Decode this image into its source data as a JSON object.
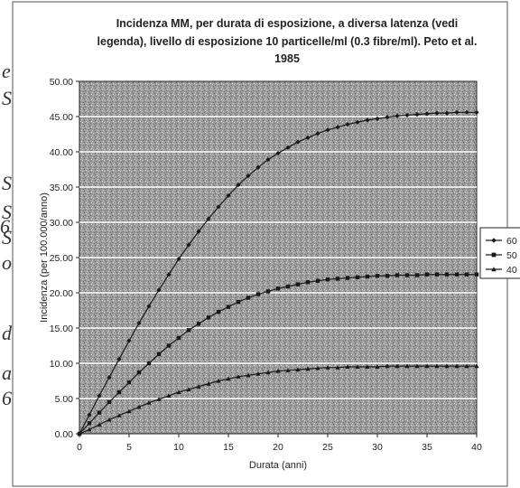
{
  "chart_data": {
    "type": "line",
    "title_lines": [
      "Incidenza MM, per durata di esposizione, a diversa latenza (vedi",
      "legenda), livello di esposizione 10 particelle/ml (0.3 fibre/ml). Peto et al.",
      "1985"
    ],
    "xlabel": "Durata (anni)",
    "ylabel": "Incidenza (per 100.000/anno)",
    "xlim": [
      0,
      40
    ],
    "ylim": [
      0,
      50
    ],
    "x_ticks": [
      0,
      5,
      10,
      15,
      20,
      25,
      30,
      35,
      40
    ],
    "y_ticks": [
      "0.00",
      "5.00",
      "10.00",
      "15.00",
      "20.00",
      "25.00",
      "30.00",
      "35.00",
      "40.00",
      "45.00",
      "50.00"
    ],
    "grid": "horizontal",
    "legend_position": "right (partially cropped)",
    "x": [
      0,
      1,
      2,
      3,
      4,
      5,
      6,
      7,
      8,
      9,
      10,
      11,
      12,
      13,
      14,
      15,
      16,
      17,
      18,
      19,
      20,
      21,
      22,
      23,
      24,
      25,
      26,
      27,
      28,
      29,
      30,
      31,
      32,
      33,
      34,
      35,
      36,
      37,
      38,
      39,
      40
    ],
    "series": [
      {
        "name": "60",
        "marker": "diamond",
        "values": [
          0.0,
          2.7,
          5.4,
          8.0,
          10.6,
          13.2,
          15.7,
          18.1,
          20.4,
          22.6,
          24.8,
          26.8,
          28.7,
          30.5,
          32.2,
          33.8,
          35.3,
          36.6,
          37.8,
          38.9,
          39.8,
          40.6,
          41.4,
          42.0,
          42.6,
          43.1,
          43.5,
          43.9,
          44.2,
          44.5,
          44.7,
          44.9,
          45.1,
          45.2,
          45.3,
          45.4,
          45.5,
          45.5,
          45.6,
          45.6,
          45.6
        ]
      },
      {
        "name": "50",
        "marker": "square",
        "values": [
          0.0,
          1.5,
          3.0,
          4.5,
          5.9,
          7.3,
          8.7,
          10.0,
          11.3,
          12.5,
          13.6,
          14.7,
          15.6,
          16.5,
          17.3,
          18.0,
          18.7,
          19.3,
          19.8,
          20.2,
          20.6,
          20.9,
          21.2,
          21.5,
          21.7,
          21.9,
          22.0,
          22.1,
          22.2,
          22.3,
          22.4,
          22.4,
          22.5,
          22.5,
          22.5,
          22.6,
          22.6,
          22.6,
          22.6,
          22.6,
          22.6
        ]
      },
      {
        "name": "40",
        "marker": "triangle",
        "values": [
          0.0,
          0.6,
          1.3,
          2.0,
          2.6,
          3.2,
          3.8,
          4.4,
          4.9,
          5.4,
          5.9,
          6.3,
          6.7,
          7.1,
          7.5,
          7.8,
          8.1,
          8.3,
          8.5,
          8.7,
          8.9,
          9.0,
          9.1,
          9.2,
          9.3,
          9.4,
          9.4,
          9.5,
          9.5,
          9.5,
          9.5,
          9.6,
          9.6,
          9.6,
          9.6,
          9.6,
          9.6,
          9.6,
          9.6,
          9.6,
          9.6
        ]
      }
    ]
  },
  "margin_fragments": [
    "e",
    "S",
    "S",
    "S",
    "S",
    "6",
    "o",
    "a",
    "6",
    "d"
  ],
  "colors": {
    "line": "#1a1a1a",
    "plot_area": "#9a9a9a",
    "grid": "#ffffff",
    "background": "#ffffff"
  }
}
